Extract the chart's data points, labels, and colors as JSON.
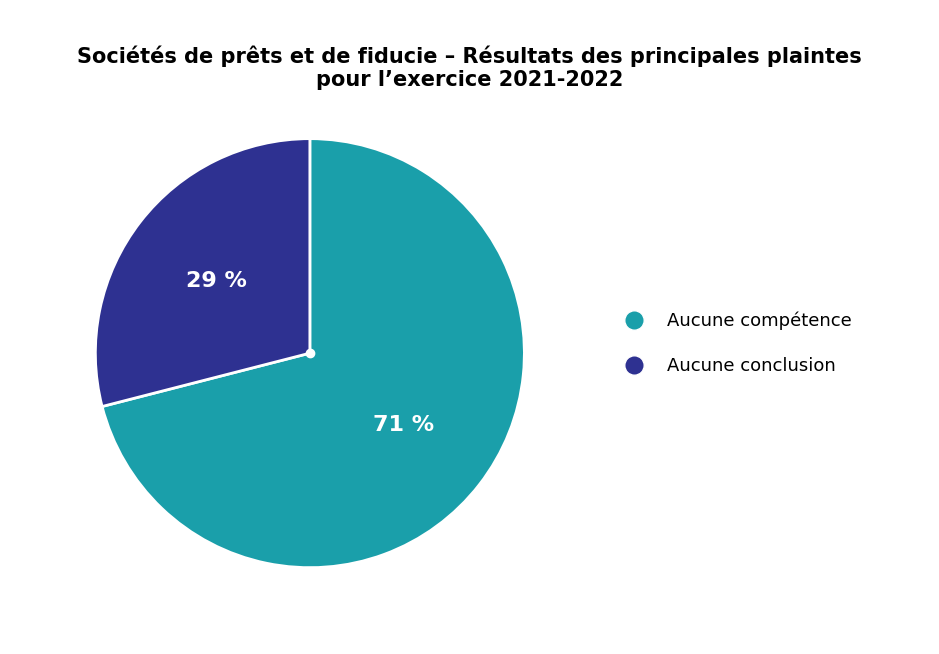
{
  "title": "Sociétés de prêts et de fiducie – Résultats des principales plaintes\npour l’exercice 2021-2022",
  "slices": [
    71,
    29
  ],
  "colors": [
    "#1a9faa",
    "#2e3191"
  ],
  "labels": [
    "71 %",
    "29 %"
  ],
  "legend_labels": [
    "Aucune compétence",
    "Aucune conclusion"
  ],
  "startangle": 90,
  "title_fontsize": 15,
  "label_fontsize": 16,
  "legend_fontsize": 13,
  "background_color": "#ffffff"
}
